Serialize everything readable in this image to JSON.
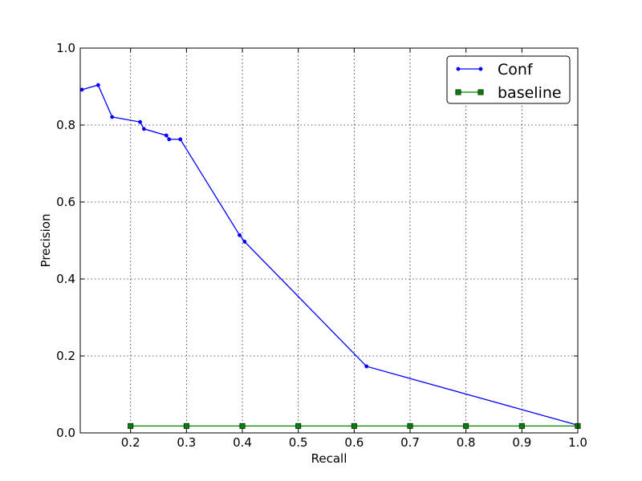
{
  "chart_data": {
    "type": "line",
    "title": "",
    "xlabel": "Recall",
    "ylabel": "Precision",
    "xlim": [
      0.11,
      1.0
    ],
    "ylim": [
      0.0,
      1.0
    ],
    "grid": true,
    "legend_position": "top-right",
    "xticks": [
      "0.2",
      "0.3",
      "0.4",
      "0.5",
      "0.6",
      "0.7",
      "0.8",
      "0.9",
      "1.0"
    ],
    "yticks": [
      "0.0",
      "0.2",
      "0.4",
      "0.6",
      "0.8",
      "1.0"
    ],
    "series": [
      {
        "name": "Conf",
        "color": "#0000ff",
        "marker": "dot",
        "x": [
          0.113,
          0.142,
          0.167,
          0.217,
          0.224,
          0.264,
          0.269,
          0.289,
          0.395,
          0.404,
          0.622,
          1.0
        ],
        "y": [
          0.892,
          0.904,
          0.821,
          0.808,
          0.79,
          0.773,
          0.763,
          0.763,
          0.514,
          0.497,
          0.173,
          0.02
        ]
      },
      {
        "name": "baseline",
        "color": "#008000",
        "marker": "square",
        "x": [
          0.2,
          0.3,
          0.4,
          0.5,
          0.6,
          0.7,
          0.8,
          0.9,
          1.0
        ],
        "y": [
          0.018,
          0.018,
          0.018,
          0.018,
          0.018,
          0.018,
          0.018,
          0.018,
          0.018
        ]
      }
    ]
  }
}
